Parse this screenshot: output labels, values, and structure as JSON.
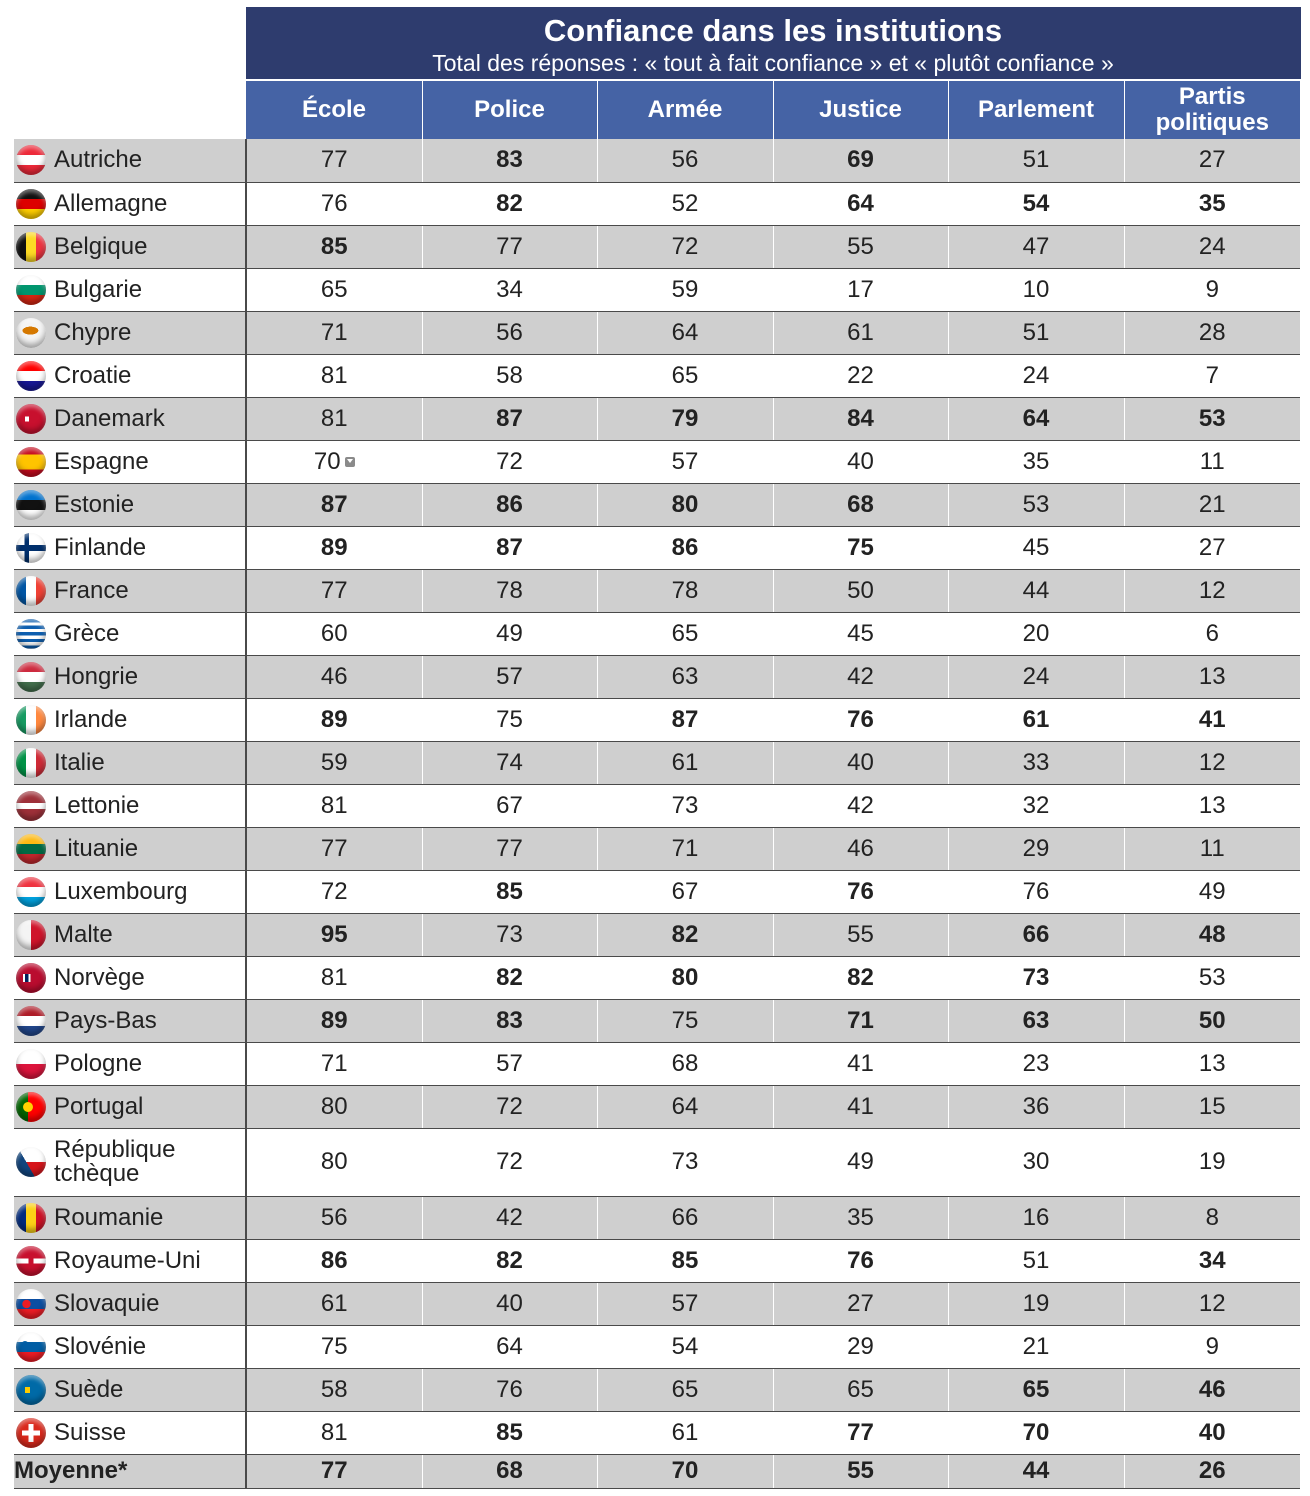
{
  "title": "Confiance dans les institutions",
  "subtitle": "Total des réponses : « tout à fait confiance » et « plutôt confiance »",
  "columns": [
    "École",
    "Police",
    "Armée",
    "Justice",
    "Parlement",
    "Partis politiques"
  ],
  "colors": {
    "title_bg": "#2e3c6e",
    "header_bg": "#4563a5",
    "row_shade": "#cfcfcf"
  },
  "chart_data": {
    "type": "table",
    "title": "Confiance dans les institutions",
    "subtitle": "Total des réponses : « tout à fait confiance » et « plutôt confiance »",
    "columns": [
      "École",
      "Police",
      "Armée",
      "Justice",
      "Parlement",
      "Partis politiques"
    ],
    "rows": [
      {
        "country": "Autriche",
        "flag": "austria-flag-icon",
        "values": [
          77,
          83,
          56,
          69,
          51,
          27
        ],
        "bold": [
          false,
          true,
          false,
          true,
          false,
          false
        ]
      },
      {
        "country": "Allemagne",
        "flag": "germany-flag-icon",
        "values": [
          76,
          82,
          52,
          64,
          54,
          35
        ],
        "bold": [
          false,
          true,
          false,
          true,
          true,
          true
        ]
      },
      {
        "country": "Belgique",
        "flag": "belgium-flag-icon",
        "values": [
          85,
          77,
          72,
          55,
          47,
          24
        ],
        "bold": [
          true,
          false,
          false,
          false,
          false,
          false
        ]
      },
      {
        "country": "Bulgarie",
        "flag": "bulgaria-flag-icon",
        "values": [
          65,
          34,
          59,
          17,
          10,
          9
        ],
        "bold": [
          false,
          false,
          false,
          false,
          false,
          false
        ]
      },
      {
        "country": "Chypre",
        "flag": "cyprus-flag-icon",
        "values": [
          71,
          56,
          64,
          61,
          51,
          28
        ],
        "bold": [
          false,
          false,
          false,
          false,
          false,
          false
        ]
      },
      {
        "country": "Croatie",
        "flag": "croatia-flag-icon",
        "values": [
          81,
          58,
          65,
          22,
          24,
          7
        ],
        "bold": [
          false,
          false,
          false,
          false,
          false,
          false
        ]
      },
      {
        "country": "Danemark",
        "flag": "denmark-flag-icon",
        "values": [
          81,
          87,
          79,
          84,
          64,
          53
        ],
        "bold": [
          false,
          true,
          true,
          true,
          true,
          true
        ]
      },
      {
        "country": "Espagne",
        "flag": "spain-flag-icon",
        "values": [
          70,
          72,
          57,
          40,
          35,
          11
        ],
        "bold": [
          false,
          false,
          false,
          false,
          false,
          false
        ],
        "marker_first": true
      },
      {
        "country": "Estonie",
        "flag": "estonia-flag-icon",
        "values": [
          87,
          86,
          80,
          68,
          53,
          21
        ],
        "bold": [
          true,
          true,
          true,
          true,
          false,
          false
        ]
      },
      {
        "country": "Finlande",
        "flag": "finland-flag-icon",
        "values": [
          89,
          87,
          86,
          75,
          45,
          27
        ],
        "bold": [
          true,
          true,
          true,
          true,
          false,
          false
        ]
      },
      {
        "country": "France",
        "flag": "france-flag-icon",
        "values": [
          77,
          78,
          78,
          50,
          44,
          12
        ],
        "bold": [
          false,
          false,
          false,
          false,
          false,
          false
        ]
      },
      {
        "country": "Grèce",
        "flag": "greece-flag-icon",
        "values": [
          60,
          49,
          65,
          45,
          20,
          6
        ],
        "bold": [
          false,
          false,
          false,
          false,
          false,
          false
        ]
      },
      {
        "country": "Hongrie",
        "flag": "hungary-flag-icon",
        "values": [
          46,
          57,
          63,
          42,
          24,
          13
        ],
        "bold": [
          false,
          false,
          false,
          false,
          false,
          false
        ]
      },
      {
        "country": "Irlande",
        "flag": "ireland-flag-icon",
        "values": [
          89,
          75,
          87,
          76,
          61,
          41
        ],
        "bold": [
          true,
          false,
          true,
          true,
          true,
          true
        ]
      },
      {
        "country": "Italie",
        "flag": "italy-flag-icon",
        "values": [
          59,
          74,
          61,
          40,
          33,
          12
        ],
        "bold": [
          false,
          false,
          false,
          false,
          false,
          false
        ]
      },
      {
        "country": "Lettonie",
        "flag": "latvia-flag-icon",
        "values": [
          81,
          67,
          73,
          42,
          32,
          13
        ],
        "bold": [
          false,
          false,
          false,
          false,
          false,
          false
        ]
      },
      {
        "country": "Lituanie",
        "flag": "lithuania-flag-icon",
        "values": [
          77,
          77,
          71,
          46,
          29,
          11
        ],
        "bold": [
          false,
          false,
          false,
          false,
          false,
          false
        ]
      },
      {
        "country": "Luxembourg",
        "flag": "luxembourg-flag-icon",
        "values": [
          72,
          85,
          67,
          76,
          76,
          49
        ],
        "bold": [
          false,
          true,
          false,
          true,
          false,
          false
        ]
      },
      {
        "country": "Malte",
        "flag": "malta-flag-icon",
        "values": [
          95,
          73,
          82,
          55,
          66,
          48
        ],
        "bold": [
          true,
          false,
          true,
          false,
          true,
          true
        ]
      },
      {
        "country": "Norvège",
        "flag": "norway-flag-icon",
        "values": [
          81,
          82,
          80,
          82,
          73,
          53
        ],
        "bold": [
          false,
          true,
          true,
          true,
          true,
          false
        ]
      },
      {
        "country": "Pays-Bas",
        "flag": "netherlands-flag-icon",
        "values": [
          89,
          83,
          75,
          71,
          63,
          50
        ],
        "bold": [
          true,
          true,
          false,
          true,
          true,
          true
        ]
      },
      {
        "country": "Pologne",
        "flag": "poland-flag-icon",
        "values": [
          71,
          57,
          68,
          41,
          23,
          13
        ],
        "bold": [
          false,
          false,
          false,
          false,
          false,
          false
        ]
      },
      {
        "country": "Portugal",
        "flag": "portugal-flag-icon",
        "values": [
          80,
          72,
          64,
          41,
          36,
          15
        ],
        "bold": [
          false,
          false,
          false,
          false,
          false,
          false
        ]
      },
      {
        "country": "République tchèque",
        "flag": "czech-republic-flag-icon",
        "values": [
          80,
          72,
          73,
          49,
          30,
          19
        ],
        "bold": [
          false,
          false,
          false,
          false,
          false,
          false
        ]
      },
      {
        "country": "Roumanie",
        "flag": "romania-flag-icon",
        "values": [
          56,
          42,
          66,
          35,
          16,
          8
        ],
        "bold": [
          false,
          false,
          false,
          false,
          false,
          false
        ]
      },
      {
        "country": "Royaume-Uni",
        "flag": "united-kingdom-flag-icon",
        "values": [
          86,
          82,
          85,
          76,
          51,
          34
        ],
        "bold": [
          true,
          true,
          true,
          true,
          false,
          true
        ]
      },
      {
        "country": "Slovaquie",
        "flag": "slovakia-flag-icon",
        "values": [
          61,
          40,
          57,
          27,
          19,
          12
        ],
        "bold": [
          false,
          false,
          false,
          false,
          false,
          false
        ]
      },
      {
        "country": "Slovénie",
        "flag": "slovenia-flag-icon",
        "values": [
          75,
          64,
          54,
          29,
          21,
          9
        ],
        "bold": [
          false,
          false,
          false,
          false,
          false,
          false
        ]
      },
      {
        "country": "Suède",
        "flag": "sweden-flag-icon",
        "values": [
          58,
          76,
          65,
          65,
          65,
          46
        ],
        "bold": [
          false,
          false,
          false,
          false,
          true,
          true
        ]
      },
      {
        "country": "Suisse",
        "flag": "switzerland-flag-icon",
        "values": [
          81,
          85,
          61,
          77,
          70,
          40
        ],
        "bold": [
          false,
          true,
          false,
          true,
          true,
          true
        ]
      }
    ],
    "average": {
      "label": "Moyenne*",
      "values": [
        77,
        68,
        70,
        55,
        44,
        26
      ]
    }
  }
}
